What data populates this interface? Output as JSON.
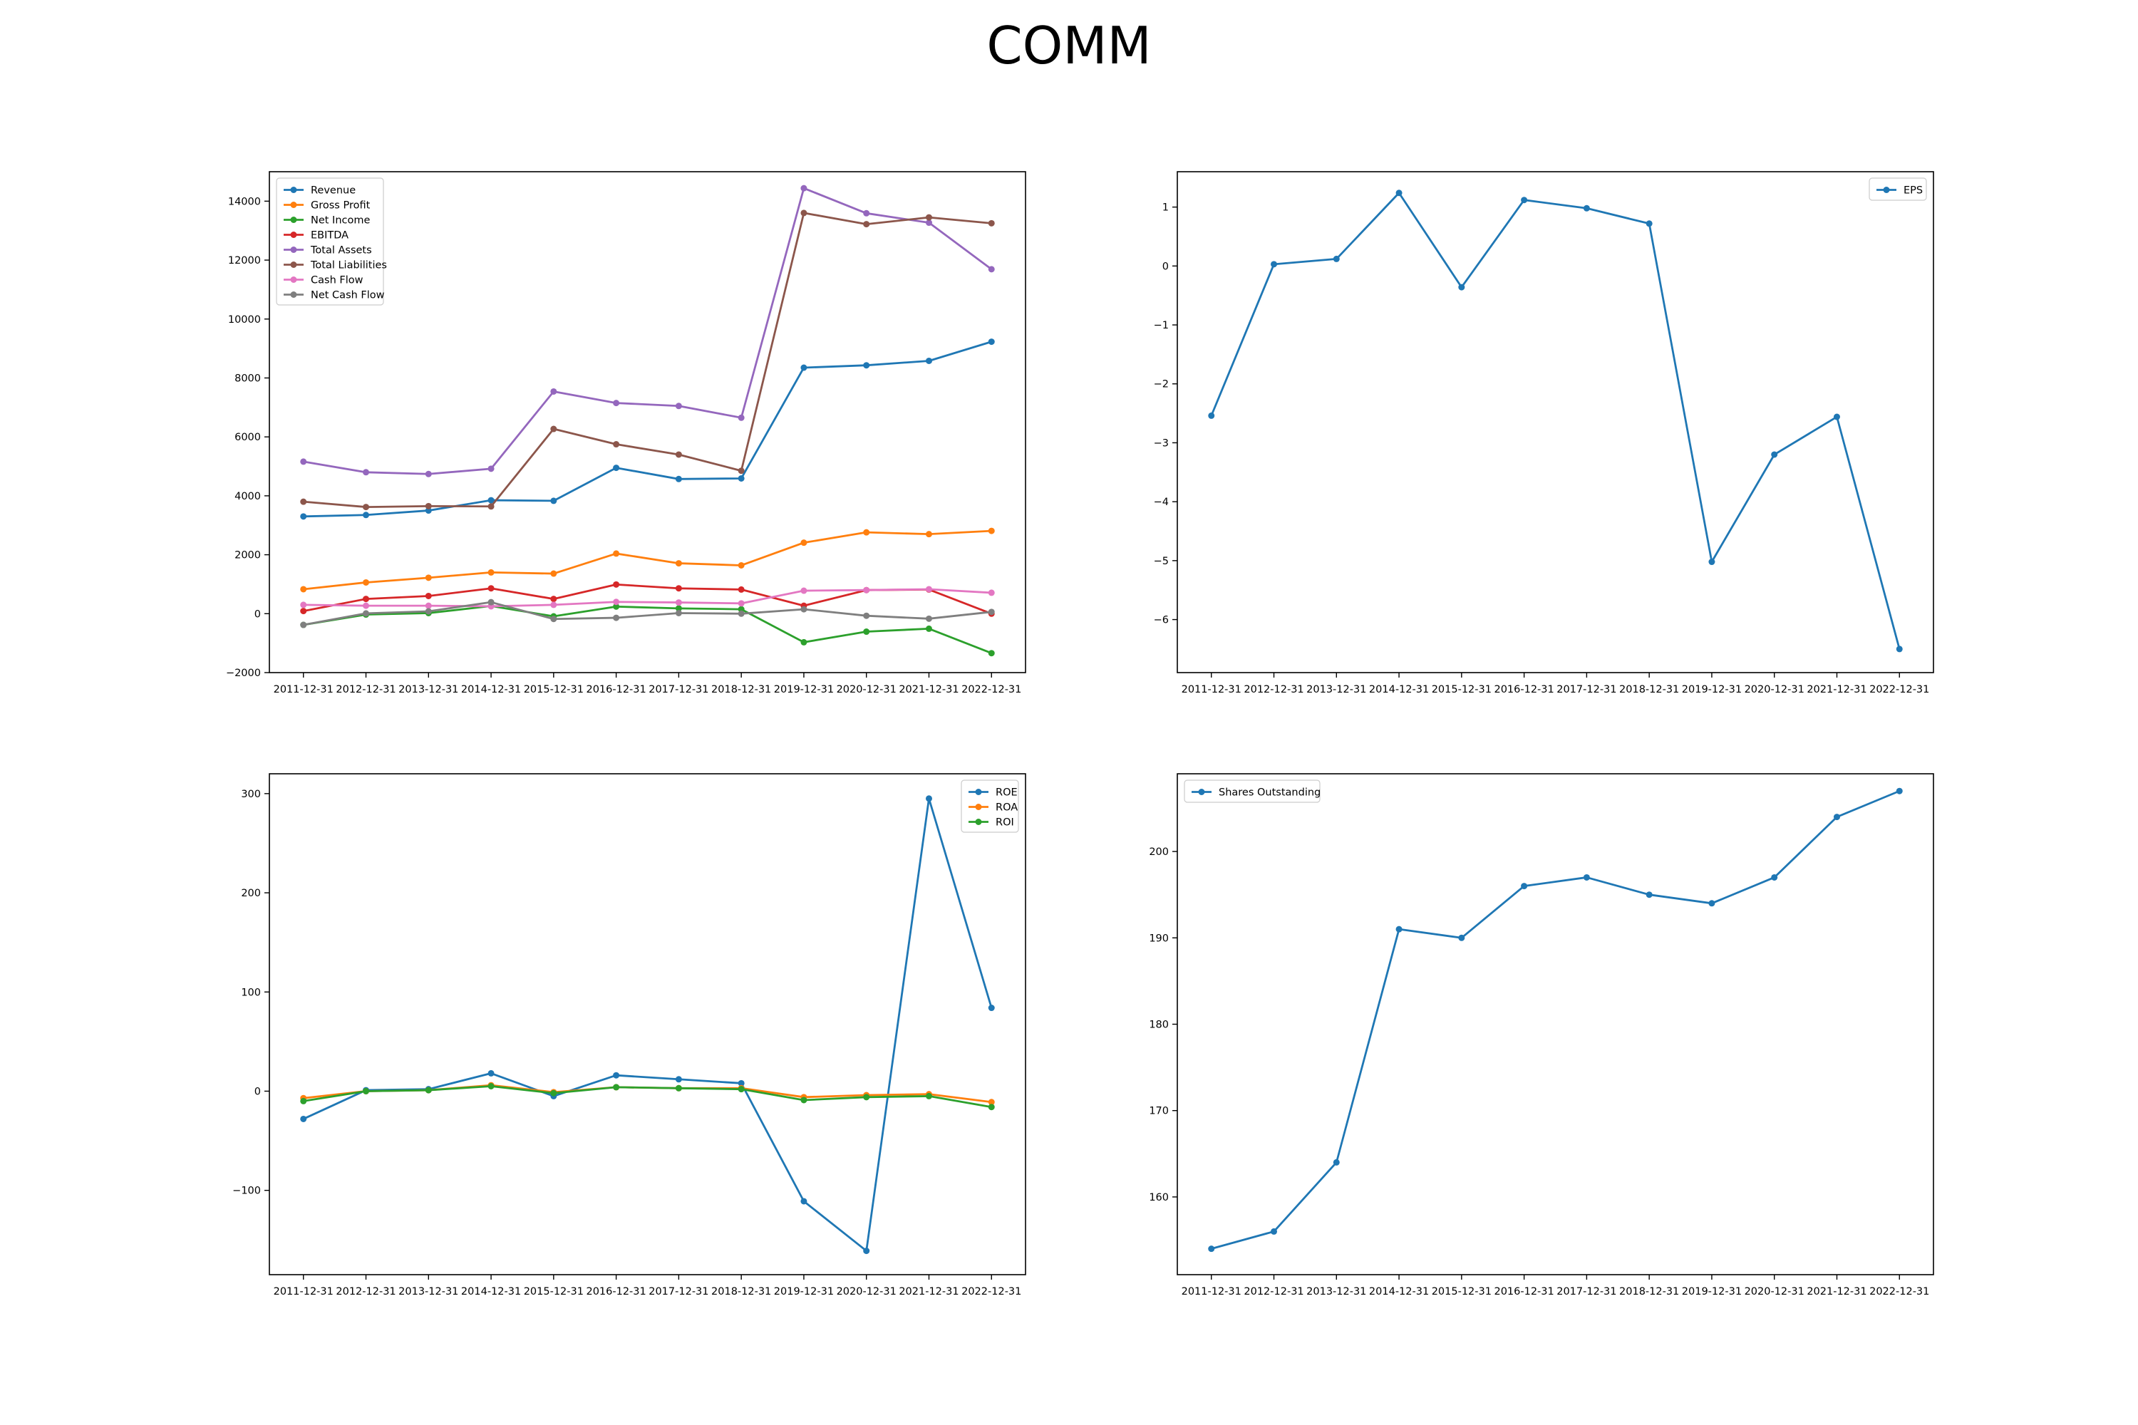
{
  "figure_title": "COMM",
  "colors": {
    "blue": "#1f77b4",
    "orange": "#ff7f0e",
    "green": "#2ca02c",
    "red": "#d62728",
    "purple": "#9467bd",
    "brown": "#8c564b",
    "pink": "#e377c2",
    "gray": "#7f7f7f"
  },
  "chart_data": [
    {
      "type": "line",
      "title": "",
      "x": [
        "2011-12-31",
        "2012-12-31",
        "2013-12-31",
        "2014-12-31",
        "2015-12-31",
        "2016-12-31",
        "2017-12-31",
        "2018-12-31",
        "2019-12-31",
        "2020-12-31",
        "2021-12-31",
        "2022-12-31"
      ],
      "ylim": [
        -2000,
        15000
      ],
      "yticks": [
        -2000,
        0,
        2000,
        4000,
        6000,
        8000,
        10000,
        12000,
        14000
      ],
      "legend": "top-left",
      "grid": false,
      "series": [
        {
          "name": "Revenue",
          "color": "#1f77b4",
          "values": [
            3300,
            3350,
            3500,
            3850,
            3830,
            4950,
            4570,
            4590,
            8350,
            8430,
            8580,
            9230
          ]
        },
        {
          "name": "Gross Profit",
          "color": "#ff7f0e",
          "values": [
            830,
            1060,
            1220,
            1400,
            1360,
            2040,
            1710,
            1640,
            2410,
            2760,
            2700,
            2810
          ]
        },
        {
          "name": "Net Income",
          "color": "#2ca02c",
          "values": [
            -380,
            -30,
            20,
            260,
            -90,
            240,
            180,
            150,
            -970,
            -610,
            -510,
            -1340
          ]
        },
        {
          "name": "EBITDA",
          "color": "#d62728",
          "values": [
            90,
            500,
            600,
            860,
            500,
            990,
            860,
            820,
            270,
            800,
            820,
            0
          ]
        },
        {
          "name": "Total Assets",
          "color": "#9467bd",
          "values": [
            5160,
            4800,
            4740,
            4920,
            7540,
            7150,
            7050,
            6650,
            14440,
            13590,
            13270,
            11690
          ]
        },
        {
          "name": "Total Liabilities",
          "color": "#8c564b",
          "values": [
            3800,
            3620,
            3650,
            3640,
            6270,
            5750,
            5400,
            4850,
            13600,
            13220,
            13450,
            13250
          ]
        },
        {
          "name": "Cash Flow",
          "color": "#e377c2",
          "values": [
            300,
            270,
            270,
            250,
            300,
            400,
            380,
            350,
            780,
            800,
            830,
            710
          ]
        },
        {
          "name": "Net Cash Flow",
          "color": "#7f7f7f",
          "values": [
            -380,
            10,
            80,
            390,
            -180,
            -140,
            20,
            0,
            150,
            -70,
            -170,
            60
          ]
        }
      ]
    },
    {
      "type": "line",
      "title": "",
      "x": [
        "2011-12-31",
        "2012-12-31",
        "2013-12-31",
        "2014-12-31",
        "2015-12-31",
        "2016-12-31",
        "2017-12-31",
        "2018-12-31",
        "2019-12-31",
        "2020-12-31",
        "2021-12-31",
        "2022-12-31"
      ],
      "ylim": [
        -6.9,
        1.6
      ],
      "yticks": [
        -6,
        -5,
        -4,
        -3,
        -2,
        -1,
        0,
        1
      ],
      "legend": "top-right",
      "grid": false,
      "series": [
        {
          "name": "EPS",
          "color": "#1f77b4",
          "values": [
            -2.54,
            0.03,
            0.12,
            1.24,
            -0.36,
            1.12,
            0.98,
            0.72,
            -5.02,
            -3.2,
            -2.56,
            -6.5
          ]
        }
      ]
    },
    {
      "type": "line",
      "title": "",
      "x": [
        "2011-12-31",
        "2012-12-31",
        "2013-12-31",
        "2014-12-31",
        "2015-12-31",
        "2016-12-31",
        "2017-12-31",
        "2018-12-31",
        "2019-12-31",
        "2020-12-31",
        "2021-12-31",
        "2022-12-31"
      ],
      "ylim": [
        -185,
        320
      ],
      "yticks": [
        -100,
        0,
        100,
        200,
        300
      ],
      "legend": "top-right",
      "grid": false,
      "series": [
        {
          "name": "ROE",
          "color": "#1f77b4",
          "values": [
            -28,
            1,
            2,
            18,
            -5,
            16,
            12,
            8,
            -111,
            -161,
            295,
            84
          ]
        },
        {
          "name": "ROA",
          "color": "#ff7f0e",
          "values": [
            -7,
            0,
            1,
            6,
            -1,
            4,
            3,
            3,
            -6,
            -4,
            -3,
            -11
          ]
        },
        {
          "name": "ROI",
          "color": "#2ca02c",
          "values": [
            -10,
            0,
            1,
            5,
            -2,
            4,
            3,
            2,
            -9,
            -6,
            -5,
            -16
          ]
        }
      ]
    },
    {
      "type": "line",
      "title": "",
      "x": [
        "2011-12-31",
        "2012-12-31",
        "2013-12-31",
        "2014-12-31",
        "2015-12-31",
        "2016-12-31",
        "2017-12-31",
        "2018-12-31",
        "2019-12-31",
        "2020-12-31",
        "2021-12-31",
        "2022-12-31"
      ],
      "ylim": [
        151,
        209
      ],
      "yticks": [
        160,
        170,
        180,
        190,
        200
      ],
      "legend": "top-left",
      "grid": false,
      "series": [
        {
          "name": "Shares Outstanding",
          "color": "#1f77b4",
          "values": [
            154,
            156,
            164,
            191,
            190,
            196,
            197,
            195,
            194,
            197,
            204,
            207
          ]
        }
      ]
    }
  ]
}
